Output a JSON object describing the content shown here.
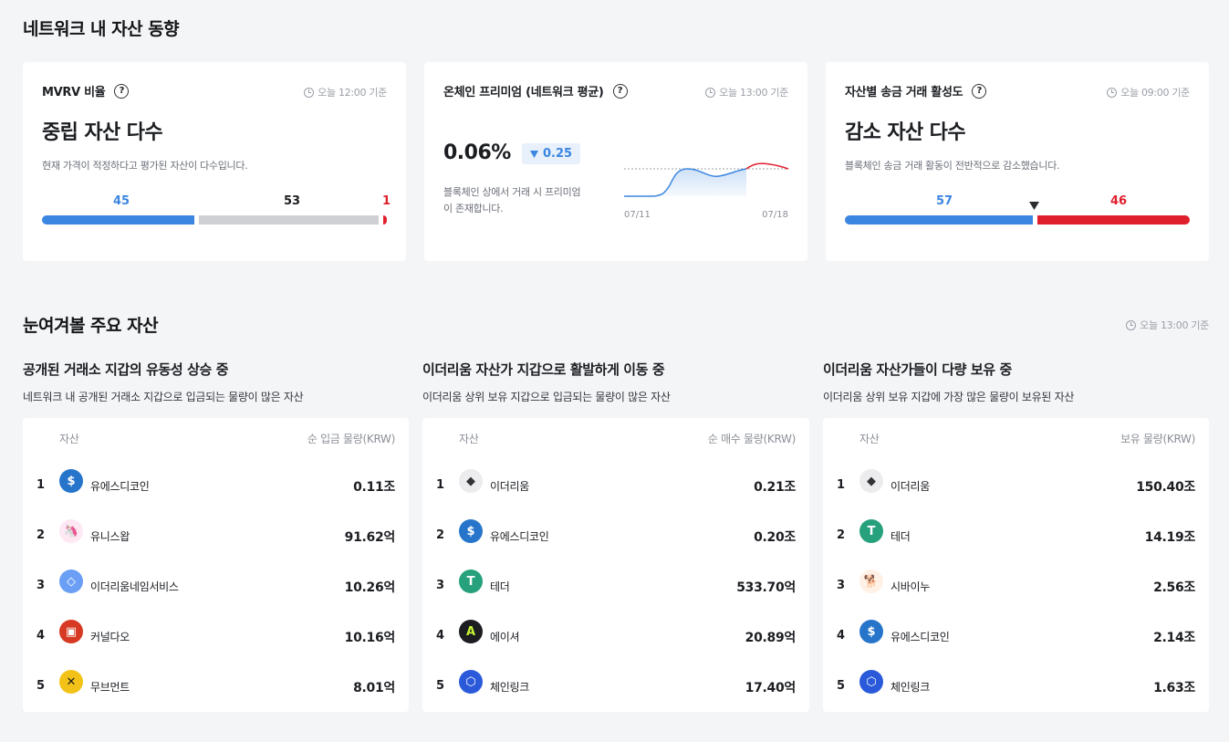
{
  "section1": {
    "title": "네트워크 내 자산 동향",
    "mvrv": {
      "title": "MVRV 비율",
      "time": "오늘 12:00 기준",
      "headline": "중립 자산 다수",
      "desc": "현재 가격이 적정하다고 평가된 자산이 다수입니다.",
      "counts": {
        "low": "45",
        "mid": "53",
        "high": "1"
      }
    },
    "premium": {
      "title": "온체인 프리미엄 (네트워크 평균)",
      "time": "오늘 13:00 기준",
      "value": "0.06%",
      "change": "0.25",
      "change_icon": "down-triangle-icon",
      "desc_line1": "블록체인 상에서 거래 시 프리미엄",
      "desc_line2": "이 존재합니다.",
      "date_start": "07/11",
      "date_end": "07/18"
    },
    "transfer": {
      "title": "자산별 송금 거래 활성도",
      "time": "오늘 09:00 기준",
      "headline": "감소 자산 다수",
      "desc": "블록체인 송금 거래 활동이 전반적으로 감소했습니다.",
      "counts": {
        "increase": "57",
        "decrease": "46"
      }
    }
  },
  "section2": {
    "title": "눈여겨볼 주요 자산",
    "time": "오늘 13:00 기준",
    "columns": [
      {
        "title": "공개된 거래소 지갑의 유동성 상승 중",
        "desc": "네트워크 내 공개된 거래소 지갑으로 입금되는 물량이 많은 자산",
        "head_asset": "자산",
        "head_value": "순 입금 물량(KRW)",
        "rows": [
          {
            "rank": "1",
            "name": "유에스디코인",
            "value": "0.11조",
            "icon": "usdc-icon"
          },
          {
            "rank": "2",
            "name": "유니스왑",
            "value": "91.62억",
            "icon": "uniswap-icon"
          },
          {
            "rank": "3",
            "name": "이더리움네임서비스",
            "value": "10.26억",
            "icon": "ens-icon"
          },
          {
            "rank": "4",
            "name": "커널다오",
            "value": "10.16억",
            "icon": "kernel-icon"
          },
          {
            "rank": "5",
            "name": "무브먼트",
            "value": "8.01억",
            "icon": "movement-icon"
          }
        ]
      },
      {
        "title": "이더리움 자산가 지갑으로 활발하게 이동 중",
        "desc": "이더리움 상위 보유 지갑으로 입금되는 물량이 많은 자산",
        "head_asset": "자산",
        "head_value": "순 매수 물량(KRW)",
        "rows": [
          {
            "rank": "1",
            "name": "이더리움",
            "value": "0.21조",
            "icon": "ethereum-icon"
          },
          {
            "rank": "2",
            "name": "유에스디코인",
            "value": "0.20조",
            "icon": "usdc-icon"
          },
          {
            "rank": "3",
            "name": "테더",
            "value": "533.70억",
            "icon": "tether-icon"
          },
          {
            "rank": "4",
            "name": "에이셔",
            "value": "20.89억",
            "icon": "ether-icon"
          },
          {
            "rank": "5",
            "name": "체인링크",
            "value": "17.40억",
            "icon": "chainlink-icon"
          }
        ]
      },
      {
        "title": "이더리움 자산가들이 다량 보유 중",
        "desc": "이더리움 상위 보유 지갑에 가장 많은 물량이 보유된 자산",
        "head_asset": "자산",
        "head_value": "보유 물량(KRW)",
        "rows": [
          {
            "rank": "1",
            "name": "이더리움",
            "value": "150.40조",
            "icon": "ethereum-icon"
          },
          {
            "rank": "2",
            "name": "테더",
            "value": "14.19조",
            "icon": "tether-icon"
          },
          {
            "rank": "3",
            "name": "시바이누",
            "value": "2.56조",
            "icon": "shiba-icon"
          },
          {
            "rank": "4",
            "name": "유에스디코인",
            "value": "2.14조",
            "icon": "usdc-icon"
          },
          {
            "rank": "5",
            "name": "체인링크",
            "value": "1.63조",
            "icon": "chainlink-icon"
          }
        ]
      }
    ]
  },
  "colors": {
    "blue": "#3b86e0",
    "red": "#e01f2d",
    "gray": "#cfd0d3"
  }
}
